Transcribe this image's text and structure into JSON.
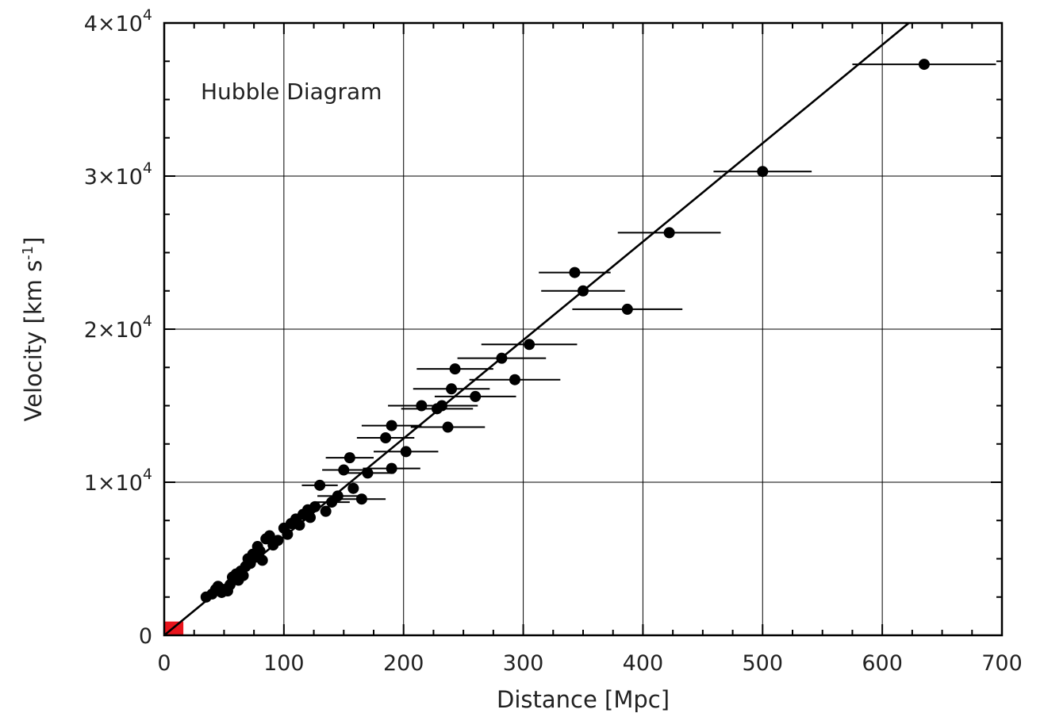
{
  "chart_data": {
    "type": "scatter",
    "title": "",
    "annotation": "Hubble Diagram",
    "xlabel": "Distance [Mpc]",
    "ylabel_main": "Velocity [km s",
    "ylabel_sup": "-1",
    "ylabel_close": "]",
    "xlim": [
      0,
      700
    ],
    "ylim": [
      0,
      40000
    ],
    "x_ticks": [
      {
        "value": 0,
        "label": "0"
      },
      {
        "value": 100,
        "label": "100"
      },
      {
        "value": 200,
        "label": "200"
      },
      {
        "value": 300,
        "label": "300"
      },
      {
        "value": 400,
        "label": "400"
      },
      {
        "value": 500,
        "label": "500"
      },
      {
        "value": 600,
        "label": "600"
      },
      {
        "value": 700,
        "label": "700"
      }
    ],
    "y_ticks": [
      {
        "value": 0,
        "label": "0",
        "exp": ""
      },
      {
        "value": 10000,
        "label": "1×10",
        "exp": "4"
      },
      {
        "value": 20000,
        "label": "2×10",
        "exp": "4"
      },
      {
        "value": 30000,
        "label": "3×10",
        "exp": "4"
      },
      {
        "value": 40000,
        "label": "4×10",
        "exp": "4"
      }
    ],
    "grid": true,
    "minor_x_ticks": [
      25,
      50,
      75,
      125,
      150,
      175,
      225,
      250,
      275,
      325,
      350,
      375,
      425,
      450,
      475,
      525,
      550,
      575,
      625,
      650,
      675
    ],
    "minor_y_ticks": [
      2500,
      5000,
      7500,
      12500,
      15000,
      17500,
      22500,
      25000,
      27500,
      32500,
      35000,
      37500
    ],
    "fit_line": {
      "x": [
        0,
        700
      ],
      "y": [
        0,
        45000
      ]
    },
    "origin_marker_color": "#e8141c",
    "origin_marker": {
      "x": [
        0,
        16
      ],
      "y": [
        0,
        900
      ]
    },
    "points": [
      {
        "x": 35,
        "y": 2500
      },
      {
        "x": 40,
        "y": 2700
      },
      {
        "x": 43,
        "y": 3000
      },
      {
        "x": 45,
        "y": 3200
      },
      {
        "x": 48,
        "y": 2800
      },
      {
        "x": 50,
        "y": 3000
      },
      {
        "x": 53,
        "y": 2900
      },
      {
        "x": 55,
        "y": 3300
      },
      {
        "x": 57,
        "y": 3800
      },
      {
        "x": 60,
        "y": 4000
      },
      {
        "x": 62,
        "y": 3600
      },
      {
        "x": 64,
        "y": 4200
      },
      {
        "x": 66,
        "y": 3900
      },
      {
        "x": 68,
        "y": 4500
      },
      {
        "x": 70,
        "y": 5000
      },
      {
        "x": 72,
        "y": 4700
      },
      {
        "x": 74,
        "y": 5300
      },
      {
        "x": 76,
        "y": 5100
      },
      {
        "x": 78,
        "y": 5800
      },
      {
        "x": 80,
        "y": 5500
      },
      {
        "x": 82,
        "y": 4900
      },
      {
        "x": 85,
        "y": 6300
      },
      {
        "x": 88,
        "y": 6500
      },
      {
        "x": 91,
        "y": 5900
      },
      {
        "x": 95,
        "y": 6200
      },
      {
        "x": 100,
        "y": 7000
      },
      {
        "x": 103,
        "y": 6600
      },
      {
        "x": 106,
        "y": 7300
      },
      {
        "x": 110,
        "y": 7600
      },
      {
        "x": 113,
        "y": 7200
      },
      {
        "x": 116,
        "y": 7900
      },
      {
        "x": 120,
        "y": 8200
      },
      {
        "x": 122,
        "y": 7700
      },
      {
        "x": 126,
        "y": 8400
      },
      {
        "x": 130,
        "y": 9800
      },
      {
        "x": 135,
        "y": 8100
      },
      {
        "x": 140,
        "y": 8700
      },
      {
        "x": 145,
        "y": 9100
      },
      {
        "x": 150,
        "y": 10800
      },
      {
        "x": 155,
        "y": 11600
      },
      {
        "x": 158,
        "y": 9600
      },
      {
        "x": 165,
        "y": 8900
      },
      {
        "x": 170,
        "y": 10600
      },
      {
        "x": 185,
        "y": 12900
      },
      {
        "x": 190,
        "y": 10900
      },
      {
        "x": 190,
        "y": 13700
      },
      {
        "x": 202,
        "y": 12000
      },
      {
        "x": 215,
        "y": 15000
      },
      {
        "x": 228,
        "y": 14800
      },
      {
        "x": 232,
        "y": 15000
      },
      {
        "x": 237,
        "y": 13600
      },
      {
        "x": 240,
        "y": 16100
      },
      {
        "x": 243,
        "y": 17400
      },
      {
        "x": 260,
        "y": 15600
      },
      {
        "x": 282,
        "y": 18100
      },
      {
        "x": 293,
        "y": 16700
      },
      {
        "x": 305,
        "y": 19000
      },
      {
        "x": 343,
        "y": 23700
      },
      {
        "x": 350,
        "y": 22500
      },
      {
        "x": 387,
        "y": 21300
      },
      {
        "x": 422,
        "y": 26300
      },
      {
        "x": 500,
        "y": 30300
      },
      {
        "x": 635,
        "y": 37300
      }
    ],
    "error_bars": [
      {
        "x": 130,
        "y": 9800,
        "xerr": 15
      },
      {
        "x": 140,
        "y": 8700,
        "xerr": 15
      },
      {
        "x": 145,
        "y": 9100,
        "xerr": 17
      },
      {
        "x": 150,
        "y": 10800,
        "xerr": 18
      },
      {
        "x": 155,
        "y": 11600,
        "xerr": 20
      },
      {
        "x": 165,
        "y": 8900,
        "xerr": 20
      },
      {
        "x": 170,
        "y": 10600,
        "xerr": 22
      },
      {
        "x": 185,
        "y": 12900,
        "xerr": 24
      },
      {
        "x": 190,
        "y": 10900,
        "xerr": 24
      },
      {
        "x": 190,
        "y": 13700,
        "xerr": 25
      },
      {
        "x": 202,
        "y": 12000,
        "xerr": 27
      },
      {
        "x": 215,
        "y": 15000,
        "xerr": 28
      },
      {
        "x": 228,
        "y": 14800,
        "xerr": 30
      },
      {
        "x": 232,
        "y": 15000,
        "xerr": 30
      },
      {
        "x": 237,
        "y": 13600,
        "xerr": 31
      },
      {
        "x": 240,
        "y": 16100,
        "xerr": 32
      },
      {
        "x": 243,
        "y": 17400,
        "xerr": 32
      },
      {
        "x": 260,
        "y": 15600,
        "xerr": 34
      },
      {
        "x": 282,
        "y": 18100,
        "xerr": 37
      },
      {
        "x": 293,
        "y": 16700,
        "xerr": 38
      },
      {
        "x": 305,
        "y": 19000,
        "xerr": 40
      },
      {
        "x": 343,
        "y": 23700,
        "xerr": 30
      },
      {
        "x": 350,
        "y": 22500,
        "xerr": 35
      },
      {
        "x": 387,
        "y": 21300,
        "xerr": 46
      },
      {
        "x": 422,
        "y": 26300,
        "xerr": 43
      },
      {
        "x": 500,
        "y": 30300,
        "xerr": 41
      },
      {
        "x": 635,
        "y": 37300,
        "xerr": 60
      }
    ]
  }
}
